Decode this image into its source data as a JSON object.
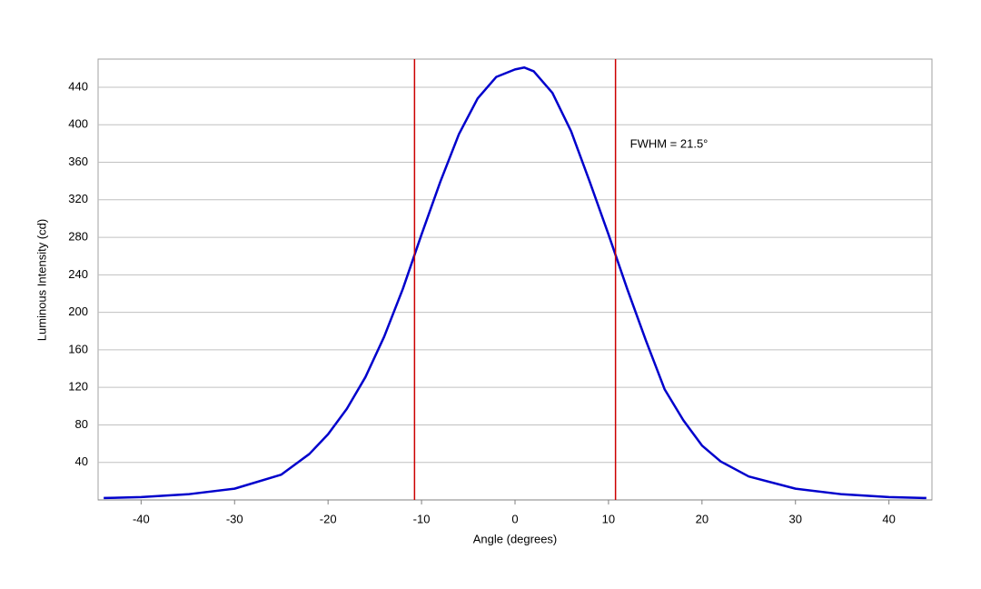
{
  "chart_data": {
    "type": "line",
    "xlabel": "Angle (degrees)",
    "ylabel": "Luminous Intensity (cd)",
    "x": [
      -44,
      -40,
      -35,
      -30,
      -25,
      -22,
      -20,
      -18,
      -16,
      -14,
      -12,
      -10,
      -8,
      -6,
      -4,
      -2,
      0,
      1,
      2,
      4,
      6,
      8,
      10,
      12,
      14,
      16,
      18,
      20,
      22,
      25,
      30,
      35,
      40,
      44
    ],
    "series": [
      {
        "name": "Intensity",
        "color": "#0000cc",
        "values": [
          2,
          3,
          6,
          12,
          27,
          49,
          70,
          97,
          131,
          174,
          225,
          283,
          339,
          390,
          428,
          451,
          459,
          461,
          457,
          434,
          393,
          339,
          283,
          225,
          170,
          118,
          85,
          58,
          41,
          25,
          12,
          6,
          3,
          2
        ]
      }
    ],
    "vlines": [
      -10.75,
      10.75
    ],
    "vline_color": "#cc0000",
    "annotation": "FWHM = 21.5°",
    "xlim": [
      -44.6,
      44.6
    ],
    "ylim": [
      0,
      470
    ],
    "xticks": [
      -40,
      -30,
      -20,
      -10,
      0,
      10,
      20,
      30,
      40
    ],
    "yticks": [
      40,
      80,
      120,
      160,
      200,
      240,
      280,
      320,
      360,
      400,
      440
    ],
    "grid": true
  }
}
